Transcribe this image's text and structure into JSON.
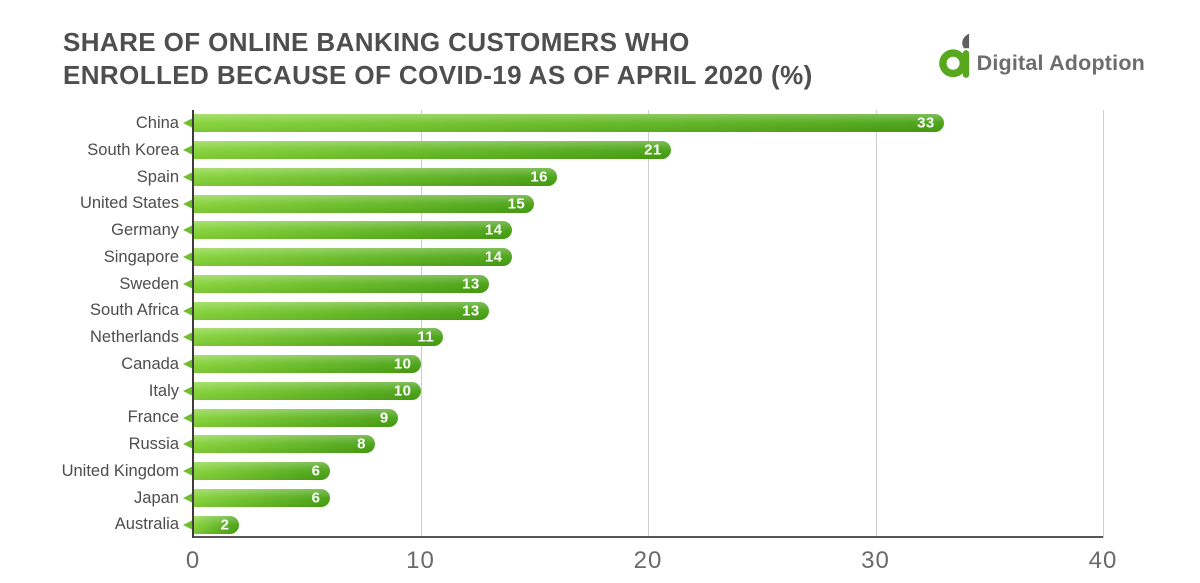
{
  "header": {
    "title_line1": "SHARE OF ONLINE BANKING CUSTOMERS WHO",
    "title_line2": "ENROLLED BECAUSE OF COVID-19 AS OF APRIL 2020 (%)",
    "logo": {
      "brand": "Digital Adoption",
      "icon": "digital-adoption-a-icon"
    }
  },
  "chart_data": {
    "type": "bar",
    "orientation": "horizontal",
    "title": "SHARE OF ONLINE BANKING CUSTOMERS WHO ENROLLED BECAUSE OF COVID-19 AS OF APRIL 2020 (%)",
    "categories": [
      "China",
      "South Korea",
      "Spain",
      "United States",
      "Germany",
      "Singapore",
      "Sweden",
      "South Africa",
      "Netherlands",
      "Canada",
      "Italy",
      "France",
      "Russia",
      "United Kingdom",
      "Japan",
      "Australia"
    ],
    "values": [
      33,
      21,
      16,
      15,
      14,
      14,
      13,
      13,
      11,
      10,
      10,
      9,
      8,
      6,
      6,
      2
    ],
    "xlabel": "",
    "ylabel": "",
    "xlim": [
      0,
      40
    ],
    "xticks": [
      0,
      10,
      20,
      30,
      40
    ],
    "grid": "vertical-gridlines-at-ticks",
    "legend": "none",
    "value_labels": "white-inside-right-end-of-bar",
    "bar_style": "gradient-pill-with-left-arrow-pointer",
    "colors": {
      "bar_gradient_start": "#85d338",
      "bar_gradient_end": "#47a112",
      "bar_arrow": "#6fbe2d",
      "gridline": "#cdcdcd",
      "axis_line": "#3d3d3d",
      "label_text": "#4d4d4d",
      "tick_text": "#6a6a6a",
      "title_text": "#4e4e4e",
      "logo_green": "#58a81d",
      "logo_leaf_gray": "#5f5f5f",
      "logo_text": "#6d6d6d"
    }
  }
}
